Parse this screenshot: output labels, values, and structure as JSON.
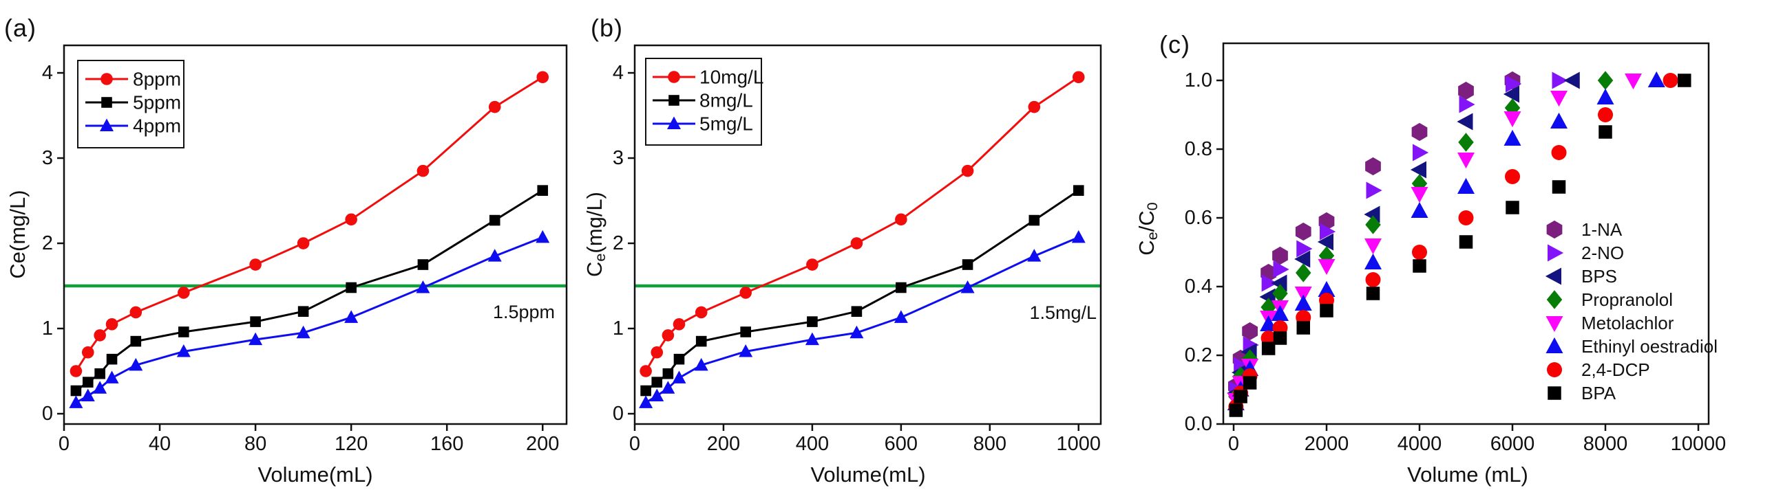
{
  "figure": {
    "background": "#ffffff"
  },
  "chart_data": [
    {
      "id": "a",
      "panel_label": "(a)",
      "type": "line",
      "xlabel": "Volume(mL)",
      "ylabel_segments": [
        {
          "t": "Ce(mg/L)",
          "sub": false
        }
      ],
      "xlim": [
        0,
        210
      ],
      "ylim": [
        -0.121,
        4.323
      ],
      "xticks": [
        0,
        40,
        80,
        120,
        160,
        200
      ],
      "yticks": [
        0,
        1,
        2,
        3,
        4
      ],
      "ytick_decimals": 0,
      "grid": false,
      "legend_position": "top-left",
      "reference_line": {
        "y": 1.5,
        "label": "1.5ppm",
        "color": "#129e3e"
      },
      "x": [
        5,
        10,
        15,
        20,
        30,
        50,
        80,
        100,
        120,
        150,
        180,
        200
      ],
      "series": [
        {
          "name": "8ppm",
          "color": "#f20d0d",
          "marker": "circle",
          "values": [
            0.5,
            0.72,
            0.92,
            1.05,
            1.19,
            1.42,
            1.75,
            2.0,
            2.28,
            2.85,
            3.6,
            3.95
          ]
        },
        {
          "name": "5ppm",
          "color": "#000000",
          "marker": "square",
          "values": [
            0.27,
            0.37,
            0.47,
            0.64,
            0.85,
            0.96,
            1.08,
            1.2,
            1.48,
            1.75,
            2.27,
            2.62
          ]
        },
        {
          "name": "4ppm",
          "color": "#0d0df0",
          "marker": "triangle-up",
          "values": [
            0.13,
            0.21,
            0.3,
            0.42,
            0.57,
            0.73,
            0.87,
            0.95,
            1.13,
            1.48,
            1.85,
            2.07
          ]
        }
      ]
    },
    {
      "id": "b",
      "panel_label": "(b)",
      "type": "line",
      "xlabel": "Volume(mL)",
      "ylabel_segments": [
        {
          "t": "C",
          "sub": false
        },
        {
          "t": "e",
          "sub": true
        },
        {
          "t": "(mg/L)",
          "sub": false
        }
      ],
      "xlim": [
        0,
        1050
      ],
      "ylim": [
        -0.121,
        4.323
      ],
      "xticks": [
        0,
        200,
        400,
        600,
        800,
        1000
      ],
      "yticks": [
        0,
        1,
        2,
        3,
        4
      ],
      "ytick_decimals": 0,
      "grid": false,
      "legend_position": "top-left",
      "reference_line": {
        "y": 1.5,
        "label": "1.5mg/L",
        "color": "#129e3e"
      },
      "x": [
        25,
        50,
        75,
        100,
        150,
        250,
        400,
        500,
        600,
        750,
        900,
        1000
      ],
      "series": [
        {
          "name": "10mg/L",
          "color": "#f20d0d",
          "marker": "circle",
          "values": [
            0.5,
            0.72,
            0.92,
            1.05,
            1.19,
            1.42,
            1.75,
            2.0,
            2.28,
            2.85,
            3.6,
            3.95
          ]
        },
        {
          "name": "8mg/L",
          "color": "#000000",
          "marker": "square",
          "values": [
            0.27,
            0.37,
            0.47,
            0.64,
            0.85,
            0.96,
            1.08,
            1.2,
            1.48,
            1.75,
            2.27,
            2.62
          ]
        },
        {
          "name": "5mg/L",
          "color": "#0d0df0",
          "marker": "triangle-up",
          "values": [
            0.13,
            0.21,
            0.3,
            0.42,
            0.57,
            0.73,
            0.87,
            0.95,
            1.13,
            1.48,
            1.85,
            2.07
          ]
        }
      ]
    },
    {
      "id": "c",
      "panel_label": "(c)",
      "type": "scatter",
      "xlabel": "Volume (mL)",
      "ylabel_segments": [
        {
          "t": "C",
          "sub": false
        },
        {
          "t": "e",
          "sub": true
        },
        {
          "t": "/C",
          "sub": false
        },
        {
          "t": "0",
          "sub": true
        }
      ],
      "xlim": [
        -222,
        10222
      ],
      "ylim": [
        0,
        1.108
      ],
      "xticks": [
        0,
        2000,
        4000,
        6000,
        8000,
        10000
      ],
      "yticks": [
        0.0,
        0.2,
        0.4,
        0.6,
        0.8,
        1.0
      ],
      "ytick_decimals": 1,
      "grid": false,
      "legend_position": "inside-right",
      "series": [
        {
          "name": "1-NA",
          "color": "#7c1f7f",
          "marker": "hexagon",
          "points": [
            [
              50,
              0.11
            ],
            [
              150,
              0.19
            ],
            [
              350,
              0.27
            ],
            [
              750,
              0.44
            ],
            [
              1000,
              0.49
            ],
            [
              1500,
              0.56
            ],
            [
              2000,
              0.59
            ],
            [
              3000,
              0.75
            ],
            [
              4000,
              0.85
            ],
            [
              5000,
              0.97
            ],
            [
              6000,
              1.0
            ]
          ]
        },
        {
          "name": "2-NO",
          "color": "#8414f8",
          "marker": "triangle-right",
          "points": [
            [
              50,
              0.1
            ],
            [
              150,
              0.17
            ],
            [
              350,
              0.23
            ],
            [
              750,
              0.41
            ],
            [
              1000,
              0.45
            ],
            [
              1500,
              0.51
            ],
            [
              2000,
              0.56
            ],
            [
              3000,
              0.68
            ],
            [
              4000,
              0.79
            ],
            [
              5000,
              0.93
            ],
            [
              6000,
              0.99
            ],
            [
              7000,
              1.0
            ]
          ]
        },
        {
          "name": "BPS",
          "color": "#141480",
          "marker": "triangle-left",
          "points": [
            [
              50,
              0.09
            ],
            [
              150,
              0.15
            ],
            [
              350,
              0.21
            ],
            [
              750,
              0.37
            ],
            [
              1000,
              0.41
            ],
            [
              1500,
              0.48
            ],
            [
              2000,
              0.53
            ],
            [
              3000,
              0.61
            ],
            [
              4000,
              0.74
            ],
            [
              5000,
              0.88
            ],
            [
              6000,
              0.96
            ],
            [
              7300,
              1.0
            ]
          ]
        },
        {
          "name": "Propranolol",
          "color": "#077d07",
          "marker": "diamond",
          "points": [
            [
              50,
              0.08
            ],
            [
              150,
              0.14
            ],
            [
              350,
              0.19
            ],
            [
              750,
              0.34
            ],
            [
              1000,
              0.38
            ],
            [
              1500,
              0.44
            ],
            [
              2000,
              0.49
            ],
            [
              3000,
              0.58
            ],
            [
              4000,
              0.7
            ],
            [
              5000,
              0.82
            ],
            [
              6000,
              0.92
            ],
            [
              8000,
              1.0
            ]
          ]
        },
        {
          "name": "Metolachlor",
          "color": "#fb06fb",
          "marker": "triangle-down",
          "points": [
            [
              50,
              0.07
            ],
            [
              150,
              0.12
            ],
            [
              350,
              0.17
            ],
            [
              750,
              0.31
            ],
            [
              1000,
              0.34
            ],
            [
              1500,
              0.38
            ],
            [
              2000,
              0.46
            ],
            [
              3000,
              0.52
            ],
            [
              4000,
              0.67
            ],
            [
              5000,
              0.77
            ],
            [
              6000,
              0.89
            ],
            [
              7000,
              0.95
            ],
            [
              8600,
              1.0
            ]
          ]
        },
        {
          "name": "Ethinyl oestradiol",
          "color": "#0d0df0",
          "marker": "triangle-up",
          "points": [
            [
              50,
              0.06
            ],
            [
              150,
              0.1
            ],
            [
              350,
              0.16
            ],
            [
              750,
              0.29
            ],
            [
              1000,
              0.32
            ],
            [
              1500,
              0.35
            ],
            [
              2000,
              0.39
            ],
            [
              3000,
              0.47
            ],
            [
              4000,
              0.62
            ],
            [
              5000,
              0.69
            ],
            [
              6000,
              0.83
            ],
            [
              7000,
              0.88
            ],
            [
              8000,
              0.95
            ],
            [
              9100,
              1.0
            ]
          ]
        },
        {
          "name": "2,4-DCP",
          "color": "#f70202",
          "marker": "circle",
          "points": [
            [
              50,
              0.05
            ],
            [
              150,
              0.09
            ],
            [
              350,
              0.14
            ],
            [
              750,
              0.25
            ],
            [
              1000,
              0.28
            ],
            [
              1500,
              0.31
            ],
            [
              2000,
              0.36
            ],
            [
              3000,
              0.42
            ],
            [
              4000,
              0.5
            ],
            [
              5000,
              0.6
            ],
            [
              6000,
              0.72
            ],
            [
              7000,
              0.79
            ],
            [
              8000,
              0.9
            ],
            [
              9400,
              1.0
            ]
          ]
        },
        {
          "name": "BPA",
          "color": "#000000",
          "marker": "square",
          "points": [
            [
              50,
              0.04
            ],
            [
              150,
              0.08
            ],
            [
              350,
              0.12
            ],
            [
              750,
              0.22
            ],
            [
              1000,
              0.25
            ],
            [
              1500,
              0.28
            ],
            [
              2000,
              0.33
            ],
            [
              3000,
              0.38
            ],
            [
              4000,
              0.46
            ],
            [
              5000,
              0.53
            ],
            [
              6000,
              0.63
            ],
            [
              7000,
              0.69
            ],
            [
              8000,
              0.85
            ],
            [
              9700,
              1.0
            ]
          ]
        }
      ]
    }
  ]
}
